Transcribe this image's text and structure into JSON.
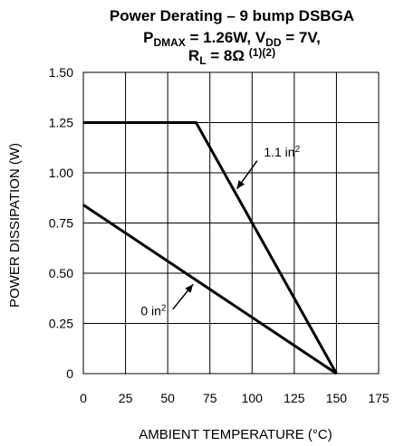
{
  "chart_data": {
    "type": "line",
    "title": {
      "line1": "Power Derating – 9 bump DSBGA",
      "line2": {
        "p": "P",
        "p_sub": "DMAX",
        "p_val": " = 1.26W, V",
        "v_sub": "DD",
        "v_val": " = 7V,"
      },
      "line3": {
        "r": "R",
        "r_sub": "L",
        "r_val": " = 8Ω ",
        "notes": "(1)(2)"
      }
    },
    "xlabel": "AMBIENT TEMPERATURE (°C)",
    "ylabel": "POWER DISSIPATION (W)",
    "xlim": [
      0,
      175
    ],
    "ylim": [
      0,
      1.5
    ],
    "x_ticks": [
      0,
      25,
      50,
      75,
      100,
      125,
      150,
      175
    ],
    "x_tick_labels": [
      "0",
      "25",
      "50",
      "75",
      "100",
      "125",
      "150",
      "175"
    ],
    "y_ticks": [
      0,
      0.25,
      0.5,
      0.75,
      1.0,
      1.25,
      1.5
    ],
    "y_tick_labels": [
      "0",
      "0.25",
      "0.50",
      "0.75",
      "1.00",
      "1.25",
      "1.50"
    ],
    "grid": true,
    "series": [
      {
        "name": "1.1 in²",
        "label_text": "1.1 in",
        "label_sup": "2",
        "x": [
          0,
          66.8,
          150
        ],
        "y": [
          1.25,
          1.25,
          0
        ],
        "color": "#000000",
        "annotation": {
          "text_x": 107,
          "text_y": 1.08,
          "arrow_from": [
            103,
            1.06
          ],
          "arrow_to": [
            91,
            0.92
          ]
        }
      },
      {
        "name": "0 in²",
        "label_text": "0 in",
        "label_sup": "2",
        "x": [
          0,
          150
        ],
        "y": [
          0.84,
          0
        ],
        "color": "#000000",
        "annotation": {
          "text_x": 34,
          "text_y": 0.29,
          "arrow_from": [
            53,
            0.32
          ],
          "arrow_to": [
            65,
            0.445
          ]
        }
      }
    ]
  }
}
